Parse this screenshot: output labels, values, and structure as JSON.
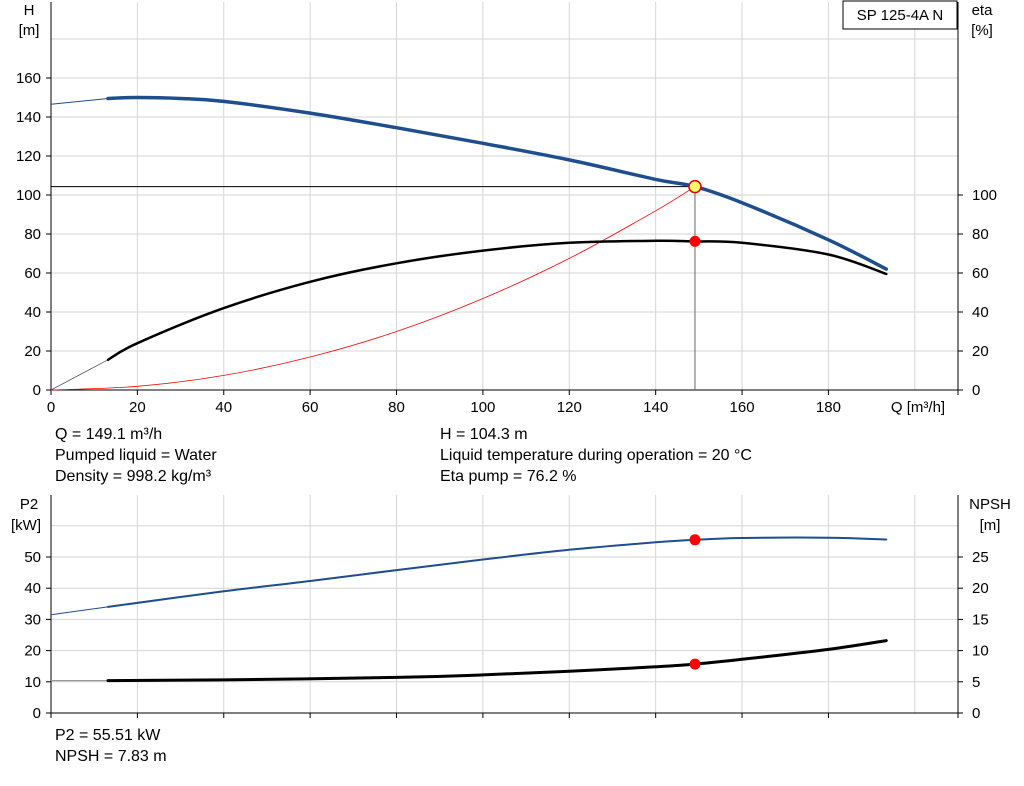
{
  "pump_name": "SP 125-4A N",
  "chart_data": [
    {
      "type": "line",
      "title": "SP 125-4A N",
      "xlabel": "Q [m³/h]",
      "ylabel": "H [m]",
      "y2label": "eta [%]",
      "xlim": [
        0,
        210
      ],
      "ylim": [
        0,
        170
      ],
      "y2lim": [
        0,
        170
      ],
      "x_ticks": [
        "0",
        "20",
        "40",
        "60",
        "80",
        "100",
        "120",
        "140",
        "160",
        "180"
      ],
      "y_ticks": [
        "0",
        "20",
        "40",
        "60",
        "80",
        "100",
        "120",
        "140",
        "160"
      ],
      "y2_ticks": [
        "0",
        "20",
        "40",
        "60",
        "80",
        "100"
      ],
      "grid": true,
      "series": [
        {
          "name": "H",
          "color": "#1f4e8c",
          "x": [
            0,
            13.2,
            20,
            30,
            40,
            60,
            80,
            100,
            120,
            140,
            149.1,
            160,
            180,
            193.4
          ],
          "values": [
            146.5,
            149.5,
            150,
            149.5,
            148,
            142,
            134.5,
            126.5,
            118,
            108,
            104.3,
            96,
            77,
            62
          ]
        },
        {
          "name": "eta",
          "color": "#000000",
          "x": [
            0,
            13.2,
            20,
            40,
            60,
            80,
            100,
            120,
            140,
            149.1,
            160,
            180,
            193.4
          ],
          "values": [
            0,
            15.5,
            24,
            42,
            55.5,
            65,
            71.5,
            75.5,
            76.5,
            76.2,
            75.5,
            69.5,
            59.5
          ]
        },
        {
          "name": "system",
          "color": "#ff0000",
          "x": [
            0,
            20,
            40,
            60,
            80,
            100,
            120,
            140,
            149.1
          ],
          "values": [
            0,
            1.9,
            7.5,
            16.9,
            30,
            46.9,
            67.5,
            91.9,
            104.3
          ]
        }
      ],
      "duty_point": {
        "Q": 149.1,
        "H": 104.3,
        "eta": 76.2
      }
    },
    {
      "type": "line",
      "xlabel": "",
      "ylabel": "P2 [kW]",
      "y2label": "NPSH [m]",
      "xlim": [
        0,
        210
      ],
      "ylim": [
        0,
        62
      ],
      "y2lim": [
        0,
        31
      ],
      "y_ticks": [
        "0",
        "10",
        "20",
        "30",
        "40",
        "50"
      ],
      "y2_ticks": [
        "0",
        "5",
        "10",
        "15",
        "20",
        "25"
      ],
      "grid": true,
      "series": [
        {
          "name": "P2",
          "color": "#1f4e8c",
          "x": [
            0,
            13.2,
            40,
            60,
            80,
            100,
            120,
            140,
            149.1,
            160,
            180,
            193.4
          ],
          "values": [
            31.5,
            34,
            39,
            42.3,
            45.8,
            49.2,
            52.3,
            54.7,
            55.51,
            56.1,
            56.2,
            55.6
          ]
        },
        {
          "name": "NPSH",
          "color": "#000000",
          "x": [
            0,
            13.2,
            40,
            80,
            100,
            120,
            140,
            149.1,
            160,
            180,
            193.4
          ],
          "values": [
            5.2,
            5.2,
            5.3,
            5.7,
            6.1,
            6.7,
            7.4,
            7.83,
            8.6,
            10.2,
            11.6
          ]
        }
      ],
      "duty_point": {
        "Q": 149.1,
        "P2": 55.51,
        "NPSH": 7.83
      }
    }
  ],
  "axis": {
    "h_label": "H",
    "h_unit": "[m]",
    "eta_label": "eta",
    "eta_unit": "[%]",
    "q_label": "Q [m³/h]",
    "p2_label": "P2",
    "p2_unit": "[kW]",
    "npsh_label": "NPSH",
    "npsh_unit": "[m]"
  },
  "info": {
    "q": "Q = 149.1 m³/h",
    "liquid": "Pumped liquid = Water",
    "density": "Density = 998.2 kg/m³",
    "h": "H = 104.3 m",
    "temp": "Liquid temperature during operation = 20 °C",
    "eta": "Eta pump = 76.2 %",
    "p2": "P2 = 55.51 kW",
    "npsh": "NPSH = 7.83 m"
  }
}
